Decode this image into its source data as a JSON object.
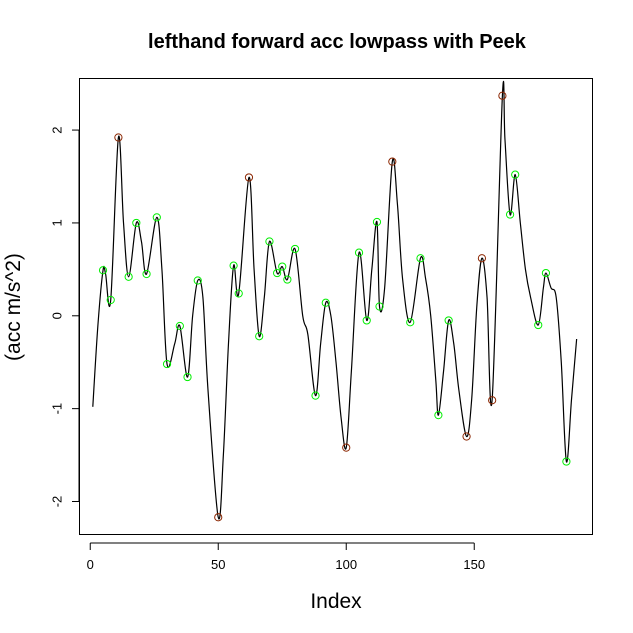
{
  "chart_data": {
    "type": "line",
    "title": "lefthand forward acc lowpass with Peek",
    "xlabel": "Index",
    "ylabel": "(acc m/s^2)",
    "xlim": [
      -4,
      196
    ],
    "ylim": [
      -2.35,
      2.55
    ],
    "x_ticks": [
      0,
      50,
      100,
      150
    ],
    "x_tick_labels": [
      "0",
      "50",
      "100",
      "150"
    ],
    "y_ticks": [
      -2,
      -1,
      0,
      1,
      2
    ],
    "y_tick_labels": [
      "-2",
      "-1",
      "0",
      "1",
      "2"
    ],
    "grid": false,
    "line_color": "#000000",
    "series": [
      {
        "name": "acc",
        "knots": [
          [
            1,
            -0.98
          ],
          [
            3,
            -0.1
          ],
          [
            5,
            0.49
          ],
          [
            6,
            0.45
          ],
          [
            8,
            0.17
          ],
          [
            11,
            1.92
          ],
          [
            13,
            1.0
          ],
          [
            15,
            0.42
          ],
          [
            18,
            1.0
          ],
          [
            20,
            0.8
          ],
          [
            22,
            0.45
          ],
          [
            26,
            1.06
          ],
          [
            28,
            0.5
          ],
          [
            30,
            -0.52
          ],
          [
            33,
            -0.3
          ],
          [
            35,
            -0.11
          ],
          [
            38,
            -0.66
          ],
          [
            40,
            0.0
          ],
          [
            42,
            0.38
          ],
          [
            44,
            0.2
          ],
          [
            46,
            -0.8
          ],
          [
            50,
            -2.17
          ],
          [
            52,
            -1.5
          ],
          [
            54,
            -0.3
          ],
          [
            56,
            0.54
          ],
          [
            58,
            0.24
          ],
          [
            62,
            1.49
          ],
          [
            64,
            0.5
          ],
          [
            66,
            -0.22
          ],
          [
            68,
            0.2
          ],
          [
            70,
            0.8
          ],
          [
            73,
            0.46
          ],
          [
            75,
            0.53
          ],
          [
            77,
            0.39
          ],
          [
            80,
            0.72
          ],
          [
            83,
            0.0
          ],
          [
            85,
            -0.2
          ],
          [
            88,
            -0.86
          ],
          [
            90,
            -0.3
          ],
          [
            92,
            0.14
          ],
          [
            94,
            0.0
          ],
          [
            96,
            -0.5
          ],
          [
            98,
            -1.1
          ],
          [
            100,
            -1.42
          ],
          [
            102,
            -0.6
          ],
          [
            105,
            0.68
          ],
          [
            108,
            -0.05
          ],
          [
            110,
            0.5
          ],
          [
            112,
            1.01
          ],
          [
            113,
            0.1
          ],
          [
            115,
            0.3
          ],
          [
            118,
            1.66
          ],
          [
            120,
            1.2
          ],
          [
            122,
            0.4
          ],
          [
            125,
            -0.07
          ],
          [
            129,
            0.62
          ],
          [
            131,
            0.4
          ],
          [
            133,
            0.0
          ],
          [
            135,
            -0.7
          ],
          [
            136,
            -1.07
          ],
          [
            138,
            -0.6
          ],
          [
            140,
            -0.05
          ],
          [
            142,
            -0.3
          ],
          [
            144,
            -0.8
          ],
          [
            147,
            -1.3
          ],
          [
            149,
            -0.9
          ],
          [
            151,
            0.1
          ],
          [
            153,
            0.62
          ],
          [
            155,
            0.2
          ],
          [
            157,
            -0.9
          ],
          [
            161,
            2.37
          ],
          [
            162,
            1.9
          ],
          [
            164,
            1.09
          ],
          [
            166,
            1.52
          ],
          [
            168,
            1.0
          ],
          [
            170,
            0.5
          ],
          [
            172,
            0.2
          ],
          [
            175,
            -0.1
          ],
          [
            177,
            0.3
          ],
          [
            178,
            0.46
          ],
          [
            180,
            0.3
          ],
          [
            182,
            0.2
          ],
          [
            184,
            -0.5
          ],
          [
            186,
            -1.57
          ],
          [
            188,
            -0.9
          ],
          [
            190,
            -0.25
          ]
        ]
      }
    ],
    "peaks": [
      {
        "x": 11,
        "y": 1.92
      },
      {
        "x": 62,
        "y": 1.49
      },
      {
        "x": 118,
        "y": 1.66
      },
      {
        "x": 153,
        "y": 0.62
      },
      {
        "x": 161,
        "y": 2.37
      },
      {
        "x": 50,
        "y": -2.17
      },
      {
        "x": 100,
        "y": -1.42
      },
      {
        "x": 147,
        "y": -1.3
      },
      {
        "x": 157,
        "y": -0.91
      }
    ],
    "peak_color": "#8B2500",
    "local_extrema": [
      {
        "x": 5,
        "y": 0.49
      },
      {
        "x": 8,
        "y": 0.17
      },
      {
        "x": 15,
        "y": 0.42
      },
      {
        "x": 18,
        "y": 1.0
      },
      {
        "x": 22,
        "y": 0.45
      },
      {
        "x": 26,
        "y": 1.06
      },
      {
        "x": 30,
        "y": -0.52
      },
      {
        "x": 35,
        "y": -0.11
      },
      {
        "x": 38,
        "y": -0.66
      },
      {
        "x": 42,
        "y": 0.38
      },
      {
        "x": 56,
        "y": 0.54
      },
      {
        "x": 58,
        "y": 0.24
      },
      {
        "x": 66,
        "y": -0.22
      },
      {
        "x": 70,
        "y": 0.8
      },
      {
        "x": 73,
        "y": 0.46
      },
      {
        "x": 75,
        "y": 0.53
      },
      {
        "x": 77,
        "y": 0.39
      },
      {
        "x": 80,
        "y": 0.72
      },
      {
        "x": 88,
        "y": -0.86
      },
      {
        "x": 92,
        "y": 0.14
      },
      {
        "x": 105,
        "y": 0.68
      },
      {
        "x": 108,
        "y": -0.05
      },
      {
        "x": 112,
        "y": 1.01
      },
      {
        "x": 113,
        "y": 0.1
      },
      {
        "x": 125,
        "y": -0.07
      },
      {
        "x": 129,
        "y": 0.62
      },
      {
        "x": 136,
        "y": -1.07
      },
      {
        "x": 140,
        "y": -0.05
      },
      {
        "x": 164,
        "y": 1.09
      },
      {
        "x": 166,
        "y": 1.52
      },
      {
        "x": 175,
        "y": -0.1
      },
      {
        "x": 178,
        "y": 0.46
      },
      {
        "x": 186,
        "y": -1.57
      }
    ],
    "extrema_color": "#00EE00"
  }
}
